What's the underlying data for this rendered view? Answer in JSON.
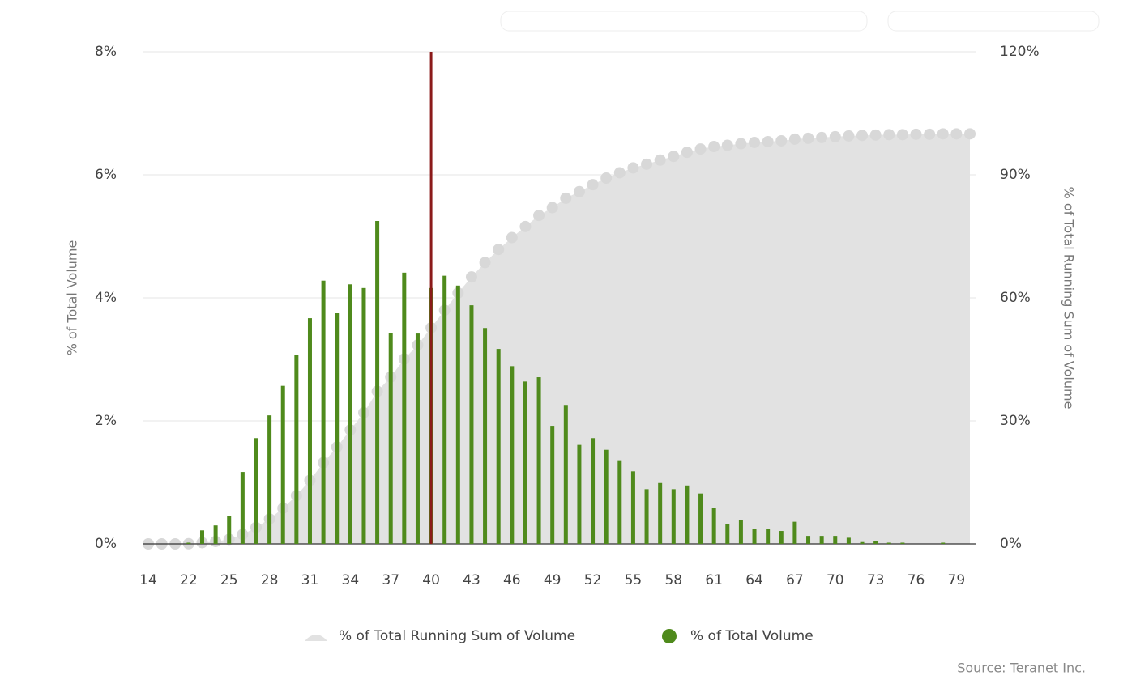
{
  "chart_data": {
    "type": "bar-area",
    "y_axis_label": "% of Total Volume",
    "y2_axis_label": "% of Total Running Sum of Volume",
    "source": "Source: Teranet Inc.",
    "categories": [
      "14",
      null,
      null,
      "22",
      null,
      null,
      "25",
      null,
      null,
      "28",
      null,
      null,
      "31",
      null,
      null,
      "34",
      null,
      null,
      "37",
      null,
      null,
      "40",
      null,
      null,
      "43",
      null,
      null,
      "46",
      null,
      null,
      "49",
      null,
      null,
      "52",
      null,
      null,
      "55",
      null,
      null,
      "58",
      null,
      null,
      "61",
      null,
      null,
      "64",
      null,
      null,
      "67",
      null,
      null,
      "70",
      null,
      null,
      "73",
      null,
      null,
      "76",
      null,
      null,
      "79",
      null
    ],
    "series": [
      {
        "name": "% of Total Running Sum of Volume",
        "color": "#e2e2e2",
        "axis": "y2",
        "values": [
          0,
          0,
          0,
          0.05,
          0.3,
          0.6,
          1.1,
          2.3,
          4.0,
          6.1,
          8.7,
          11.8,
          15.5,
          19.8,
          23.6,
          27.8,
          32.0,
          37.2,
          40.7,
          45.1,
          48.5,
          52.7,
          57.0,
          61.2,
          65.1,
          68.6,
          71.8,
          74.7,
          77.4,
          80.1,
          82.0,
          84.3,
          85.9,
          87.6,
          89.2,
          90.5,
          91.7,
          92.6,
          93.6,
          94.5,
          95.5,
          96.3,
          96.9,
          97.2,
          97.6,
          97.9,
          98.1,
          98.3,
          98.7,
          98.9,
          99.1,
          99.3,
          99.5,
          99.6,
          99.7,
          99.8,
          99.8,
          99.9,
          99.9,
          100,
          100,
          100
        ]
      },
      {
        "name": "% of Total Volume",
        "color": "#4f8a1c",
        "values": [
          0,
          0,
          0,
          0.02,
          0.22,
          0.3,
          0.46,
          1.17,
          1.72,
          2.09,
          2.57,
          3.07,
          3.67,
          4.28,
          3.75,
          4.22,
          4.16,
          5.25,
          3.43,
          4.41,
          3.42,
          4.16,
          4.36,
          4.2,
          3.88,
          3.51,
          3.17,
          2.89,
          2.64,
          2.71,
          1.92,
          2.26,
          1.61,
          1.72,
          1.53,
          1.36,
          1.18,
          0.89,
          0.99,
          0.89,
          0.95,
          0.82,
          0.58,
          0.32,
          0.39,
          0.24,
          0.24,
          0.21,
          0.36,
          0.13,
          0.13,
          0.13,
          0.1,
          0.03,
          0.05,
          0.02,
          0.02,
          0,
          0,
          0.02,
          0,
          0
        ]
      }
    ],
    "ylim": [
      0,
      8
    ],
    "yticks": [
      {
        "value": 0,
        "label": "0%"
      },
      {
        "value": 2,
        "label": "2%"
      },
      {
        "value": 4,
        "label": "4%"
      },
      {
        "value": 6,
        "label": "6%"
      },
      {
        "value": 8,
        "label": "8%"
      }
    ],
    "y2lim": [
      0,
      120
    ],
    "y2ticks": [
      {
        "value": 0,
        "label": "0%"
      },
      {
        "value": 30,
        "label": "30%"
      },
      {
        "value": 60,
        "label": "60%"
      },
      {
        "value": 90,
        "label": "90%"
      },
      {
        "value": 120,
        "label": "120%"
      }
    ],
    "grid": true,
    "legend": "bottom",
    "reference_line": {
      "category_index": 21,
      "color": "#8b1a1a"
    }
  }
}
